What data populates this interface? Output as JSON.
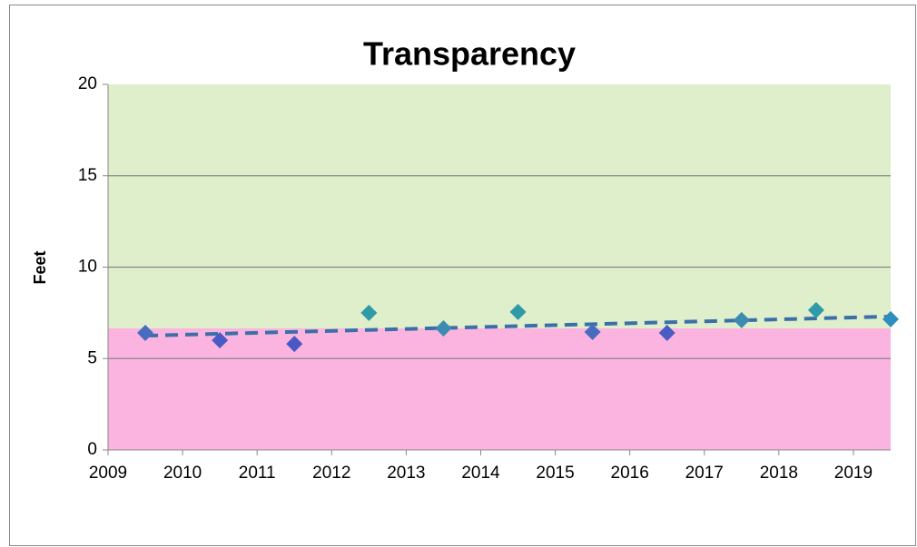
{
  "chart_data": {
    "type": "scatter",
    "title": "Transparency",
    "y_label": "Feet",
    "xlim": [
      2009,
      2019.5
    ],
    "xticks": [
      2009,
      2010,
      2011,
      2012,
      2013,
      2014,
      2015,
      2016,
      2017,
      2018,
      2019
    ],
    "ylim": [
      0,
      20
    ],
    "yticks": [
      0,
      5,
      10,
      15,
      20
    ],
    "grid": true,
    "bands": [
      {
        "from": 0,
        "to": 6.65,
        "color": "#fbb4e0"
      },
      {
        "from": 6.65,
        "to": 20,
        "color": "#dfeecb"
      }
    ],
    "series": [
      {
        "x": [
          2009.5,
          2010.5,
          2011.5,
          2012.5,
          2013.5,
          2014.5,
          2015.5,
          2016.5,
          2017.5,
          2018.5,
          2019.5
        ],
        "values": [
          6.4,
          6.0,
          5.8,
          7.5,
          6.65,
          7.55,
          6.45,
          6.4,
          7.1,
          7.65,
          7.15
        ],
        "colors": [
          "#4a6cc0",
          "#4a5cc4",
          "#4a58c4",
          "#2f9aa8",
          "#3a8cb0",
          "#2f9aa8",
          "#4a6cc0",
          "#4a5cc4",
          "#3a8cb0",
          "#2f9aa8",
          "#2f8ec0"
        ]
      }
    ],
    "trendline": {
      "x": [
        2009.5,
        2019.5
      ],
      "values": [
        6.25,
        7.3
      ],
      "color": "#3a6fa8"
    }
  }
}
